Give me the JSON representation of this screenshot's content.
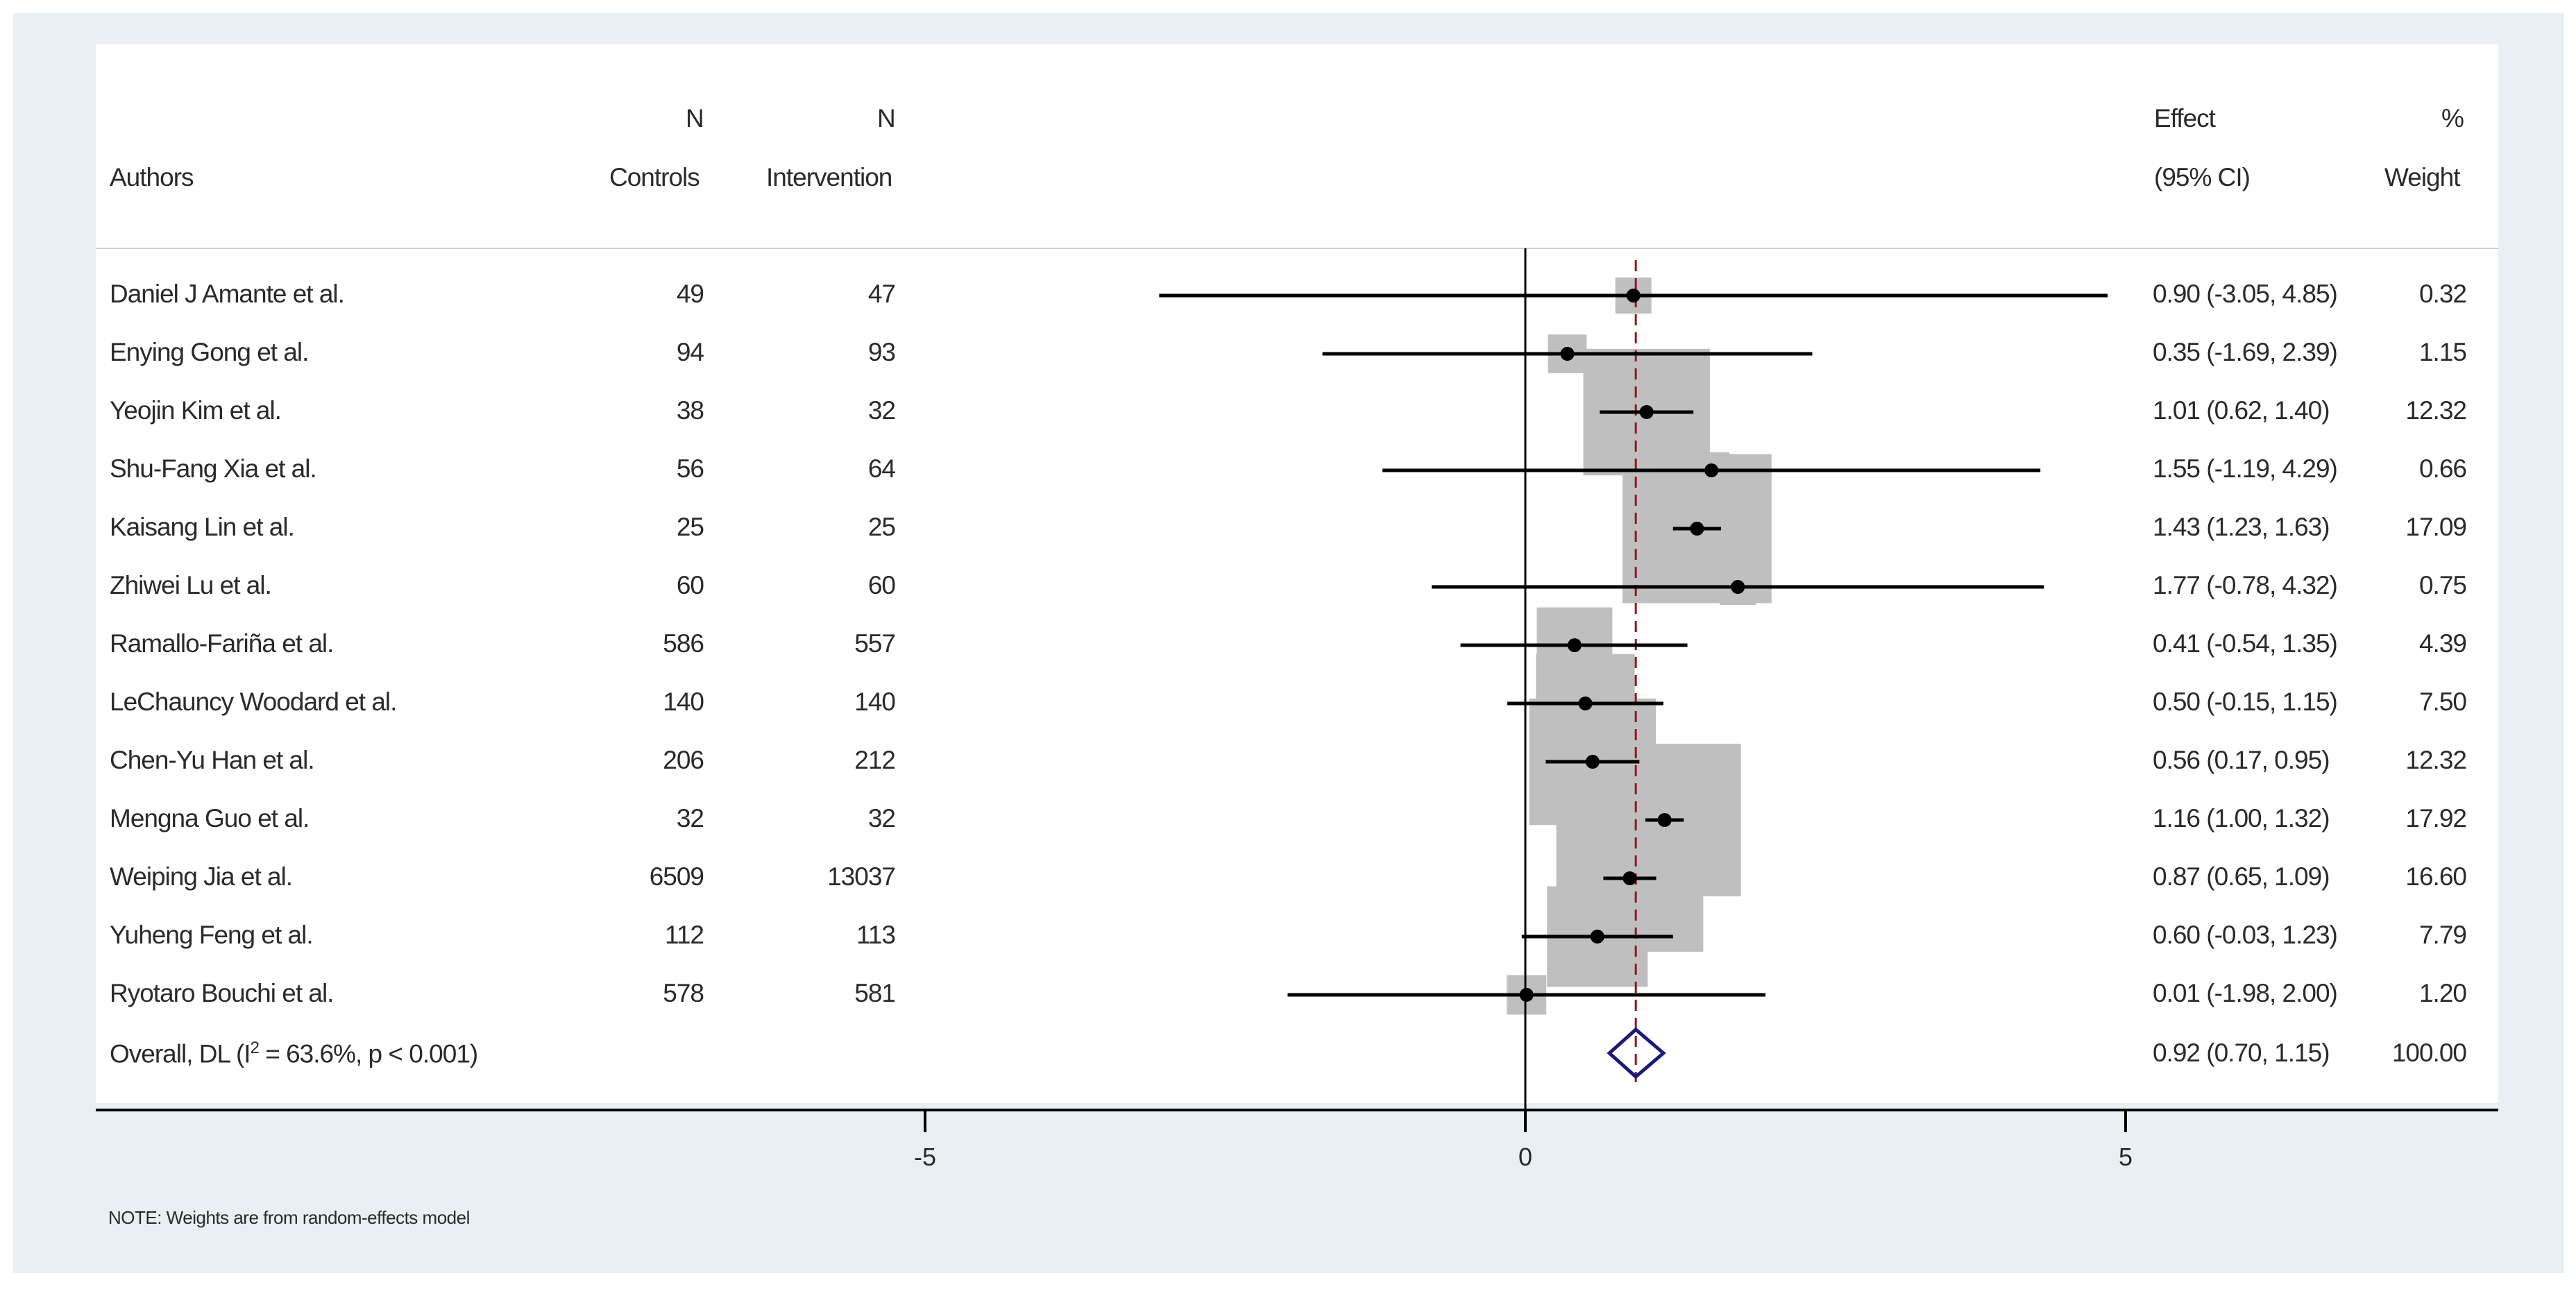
{
  "header": {
    "n": "N",
    "authors": "Authors",
    "controls": "Controls",
    "intervention": "Intervention",
    "effect": "Effect",
    "ci": "(95% CI)",
    "pct": "%",
    "weight": "Weight"
  },
  "note": "NOTE: Weights are from random-effects model",
  "chart_data": {
    "type": "forest",
    "xlim": [
      -7.5,
      8.5
    ],
    "xticks": [
      -5,
      0,
      5
    ],
    "xtick_labels": [
      "-5",
      "0",
      "5"
    ],
    "null_line": 0,
    "overall_line": 0.92,
    "rows": [
      {
        "author": "Daniel J Amante et al.",
        "controls": "49",
        "intervention": "47",
        "effect": 0.9,
        "lo": -3.05,
        "hi": 4.85,
        "ci_text": "0.90 (-3.05, 4.85)",
        "weight": 0.32,
        "weight_text": "0.32"
      },
      {
        "author": "Enying Gong et al.",
        "controls": "94",
        "intervention": "93",
        "effect": 0.35,
        "lo": -1.69,
        "hi": 2.39,
        "ci_text": "0.35 (-1.69, 2.39)",
        "weight": 1.15,
        "weight_text": "1.15"
      },
      {
        "author": "Yeojin Kim et al.",
        "controls": "38",
        "intervention": "32",
        "effect": 1.01,
        "lo": 0.62,
        "hi": 1.4,
        "ci_text": "1.01 (0.62, 1.40)",
        "weight": 12.32,
        "weight_text": "12.32"
      },
      {
        "author": "Shu-Fang Xia et al.",
        "controls": "56",
        "intervention": "64",
        "effect": 1.55,
        "lo": -1.19,
        "hi": 4.29,
        "ci_text": "1.55 (-1.19, 4.29)",
        "weight": 0.66,
        "weight_text": "0.66"
      },
      {
        "author": "Kaisang Lin et al.",
        "controls": "25",
        "intervention": "25",
        "effect": 1.43,
        "lo": 1.23,
        "hi": 1.63,
        "ci_text": "1.43 (1.23, 1.63)",
        "weight": 17.09,
        "weight_text": "17.09"
      },
      {
        "author": "Zhiwei Lu et al.",
        "controls": "60",
        "intervention": "60",
        "effect": 1.77,
        "lo": -0.78,
        "hi": 4.32,
        "ci_text": "1.77 (-0.78, 4.32)",
        "weight": 0.75,
        "weight_text": "0.75"
      },
      {
        "author": "Ramallo-Fariña et al.",
        "controls": "586",
        "intervention": "557",
        "effect": 0.41,
        "lo": -0.54,
        "hi": 1.35,
        "ci_text": "0.41 (-0.54, 1.35)",
        "weight": 4.39,
        "weight_text": "4.39"
      },
      {
        "author": "LeChauncy Woodard et al.",
        "controls": "140",
        "intervention": "140",
        "effect": 0.5,
        "lo": -0.15,
        "hi": 1.15,
        "ci_text": "0.50 (-0.15, 1.15)",
        "weight": 7.5,
        "weight_text": "7.50"
      },
      {
        "author": "Chen-Yu Han et al.",
        "controls": "206",
        "intervention": "212",
        "effect": 0.56,
        "lo": 0.17,
        "hi": 0.95,
        "ci_text": "0.56 (0.17, 0.95)",
        "weight": 12.32,
        "weight_text": "12.32"
      },
      {
        "author": "Mengna Guo et al.",
        "controls": "32",
        "intervention": "32",
        "effect": 1.16,
        "lo": 1.0,
        "hi": 1.32,
        "ci_text": "1.16 (1.00, 1.32)",
        "weight": 17.92,
        "weight_text": "17.92"
      },
      {
        "author": "Weiping Jia et al.",
        "controls": "6509",
        "intervention": "13037",
        "effect": 0.87,
        "lo": 0.65,
        "hi": 1.09,
        "ci_text": "0.87 (0.65, 1.09)",
        "weight": 16.6,
        "weight_text": "16.60"
      },
      {
        "author": "Yuheng Feng et al.",
        "controls": "112",
        "intervention": "113",
        "effect": 0.6,
        "lo": -0.03,
        "hi": 1.23,
        "ci_text": "0.60 (-0.03, 1.23)",
        "weight": 7.79,
        "weight_text": "7.79"
      },
      {
        "author": "Ryotaro Bouchi et al.",
        "controls": "578",
        "intervention": "581",
        "effect": 0.01,
        "lo": -1.98,
        "hi": 2.0,
        "ci_text": "0.01 (-1.98, 2.00)",
        "weight": 1.2,
        "weight_text": "1.20"
      }
    ],
    "overall": {
      "label_pre": "Overall, DL (I",
      "label_sup": "2",
      "label_post": " = 63.6%, p < 0.001)",
      "effect": 0.92,
      "lo": 0.7,
      "hi": 1.15,
      "ci_text": "0.92 (0.70, 1.15)",
      "weight_text": "100.00"
    },
    "colors": {
      "ci_line": "#000000",
      "weight_box": "#bfbfbf",
      "null_line": "#000000",
      "overall_line": "#8b1a1a",
      "diamond": "#1a1a7a"
    }
  }
}
